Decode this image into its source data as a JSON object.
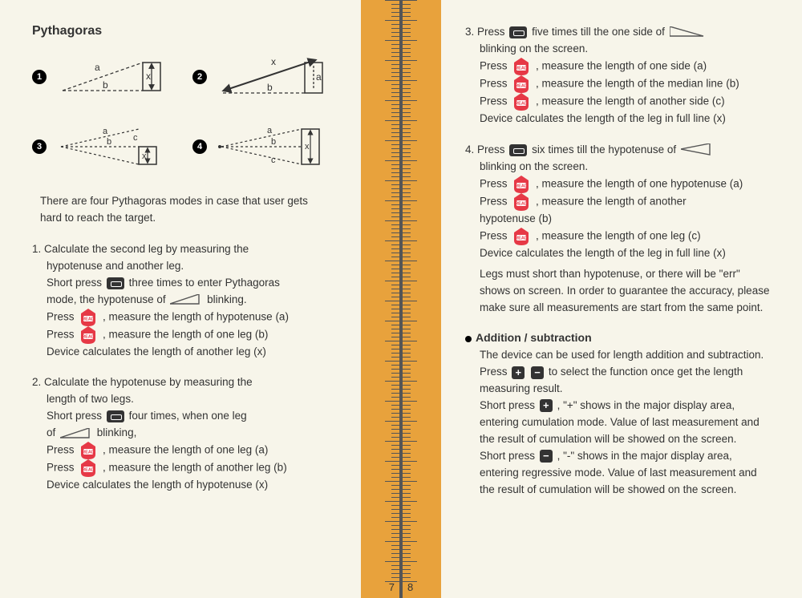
{
  "left": {
    "title": "Pythagoras",
    "diagram_numbers": [
      "1",
      "2",
      "3",
      "4"
    ],
    "intro": "There are four Pythagoras modes in case that user gets hard to reach the target.",
    "step1": {
      "l1": "1. Calculate the second leg by measuring the",
      "l2": "hypotenuse and another leg.",
      "l3a": "Short press",
      "l3b": "three times to enter Pythagoras",
      "l4a": "mode, the hypotenuse of",
      "l4b": "blinking.",
      "l5a": "Press",
      "l5b": ", measure the length of hypotenuse (a)",
      "l6a": "Press",
      "l6b": ", measure the length of one leg (b)",
      "l7": "Device calculates the length of another leg (x)"
    },
    "step2": {
      "l1": "2. Calculate the hypotenuse by measuring the",
      "l2": "length of two legs.",
      "l3a": "Short press",
      "l3b": "four times, when one leg",
      "l4a": "of",
      "l4b": "blinking,",
      "l5a": "Press",
      "l5b": ", measure the length of one leg (a)",
      "l6a": "Press",
      "l6b": ", measure the length of another leg (b)",
      "l7": "Device calculates the length of hypotenuse (x)"
    },
    "page_num": "7"
  },
  "right": {
    "step3": {
      "l1a": "3. Press",
      "l1b": "five times till the one side of",
      "l2": "blinking on the screen.",
      "l3a": "Press",
      "l3b": ", measure the length of one side (a)",
      "l4a": "Press",
      "l4b": ", measure the length of the median line (b)",
      "l5a": "Press",
      "l5b": ", measure the length of another side (c)",
      "l6": "Device calculates the length of the leg in full line (x)"
    },
    "step4": {
      "l1a": "4. Press",
      "l1b": "six times till the  hypotenuse of",
      "l2": "blinking on the screen.",
      "l3a": "Press",
      "l3b": ", measure the length of one hypotenuse (a)",
      "l4a": "Press",
      "l4b": ", measure the length of another",
      "l5": "hypotenuse (b)",
      "l6a": "Press",
      "l6b": ", measure the length of one leg (c)",
      "l7": "Device calculates the length of the leg in full line (x)",
      "l8": "Legs must short than hypotenuse, or there will be \"err\" shows on screen. In order to guarantee the accuracy, please make sure all measurements are start from the same point."
    },
    "addsub": {
      "title": "Addition / subtraction",
      "l1a": "The device can be used for length addition and subtraction. Press",
      "l1b": "to select the function once get the length measuring result.",
      "l2a": "Short press",
      "l2b": ", \"+\" shows in the major display area, entering cumulation mode. Value of last measurement and the result of cumulation will be showed on the screen.",
      "l3a": "Short press",
      "l3b": ", \"-\" shows in the major display area, entering regressive mode. Value of last measurement and the result of cumulation will be showed on the screen."
    },
    "page_num": "8"
  },
  "colors": {
    "read_fill": "#e63946",
    "read_text": "#ffffff",
    "binding": "#e8a23c",
    "page_bg": "#f7f5ea"
  }
}
